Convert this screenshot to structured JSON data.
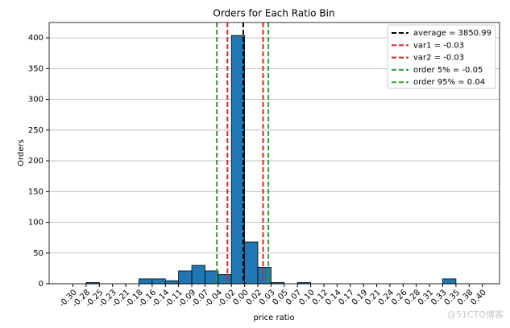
{
  "chart_data": {
    "type": "histogram",
    "title": "Orders for Each Ratio Bin",
    "xlabel": "price ratio",
    "ylabel": "Orders",
    "categories": [
      "-0.30",
      "-0.28",
      "-0.25",
      "-0.23",
      "-0.21",
      "-0.18",
      "-0.16",
      "-0.14",
      "-0.11",
      "-0.09",
      "-0.07",
      "-0.04",
      "-0.02",
      "0.00",
      "0.02",
      "0.03",
      "0.05",
      "0.07",
      "0.10",
      "0.12",
      "0.14",
      "0.17",
      "0.19",
      "0.21",
      "0.24",
      "0.26",
      "0.28",
      "0.31",
      "0.33",
      "0.35",
      "0.38",
      "0.40"
    ],
    "values": [
      0,
      2,
      0,
      0,
      0,
      8,
      8,
      5,
      21,
      30,
      21,
      15,
      404,
      68,
      27,
      2,
      0,
      2,
      0,
      0,
      0,
      0,
      0,
      0,
      0,
      0,
      0,
      0,
      8,
      0,
      0,
      null
    ],
    "color": "#1f77b4",
    "edgecolor": "#000000",
    "xlim": [
      -1.8,
      32.3
    ],
    "ylim": [
      0,
      425
    ],
    "yticks": [
      0,
      50,
      100,
      150,
      200,
      250,
      300,
      350,
      400
    ],
    "grid": "y",
    "lines": [
      {
        "name": "average = 3850.99",
        "x": 12.9,
        "color": "#000000"
      },
      {
        "name": "var1 = -0.03",
        "x": 11.7,
        "color": "#d62728"
      },
      {
        "name": "var2 = -0.03",
        "x": 14.4,
        "color": "#d62728"
      },
      {
        "name": "order 5% = -0.05",
        "x": 10.9,
        "color": "#2ca02c"
      },
      {
        "name": "order 95% = 0.04",
        "x": 14.8,
        "color": "#2ca02c"
      }
    ],
    "legend": "upper right"
  },
  "watermark": "@51CTO博客"
}
